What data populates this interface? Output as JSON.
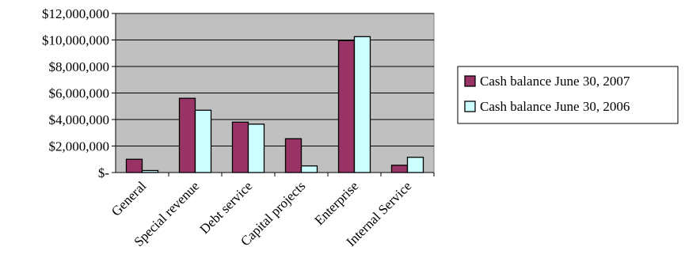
{
  "chart_data": {
    "type": "bar",
    "title": "",
    "xlabel": "",
    "ylabel": "",
    "categories": [
      "General",
      "Special revenue",
      "Debt service",
      "Capital projects",
      "Enterprise",
      "Internal Service"
    ],
    "series": [
      {
        "name": "Cash balance June 30, 2007",
        "color": "#993366",
        "values": [
          1000000,
          5600000,
          3800000,
          2550000,
          9950000,
          550000
        ]
      },
      {
        "name": "Cash balance June 30, 2006",
        "color": "#ccffff",
        "values": [
          150000,
          4700000,
          3650000,
          500000,
          10250000,
          1150000
        ]
      }
    ],
    "ylim": [
      0,
      12000000
    ],
    "yticks": [
      0,
      2000000,
      4000000,
      6000000,
      8000000,
      10000000,
      12000000
    ],
    "ytick_labels": [
      "$-",
      "$2,000,000",
      "$4,000,000",
      "$6,000,000",
      "$8,000,000",
      "$10,000,000",
      "$12,000,000"
    ],
    "plot_background": "#c0c0c0",
    "grid": true,
    "legend_position": "right"
  }
}
